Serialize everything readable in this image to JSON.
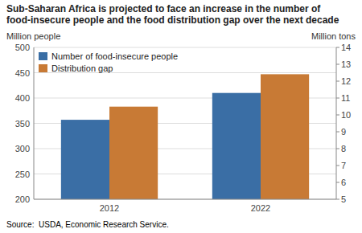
{
  "chart_data": {
    "type": "bar",
    "title": "Sub-Saharan Africa is projected to face an increase in the number of food-insecure people and the food distribution gap over the next decade",
    "ylabel": "Million people",
    "y2label": "Million tons",
    "categories": [
      "2012",
      "2022"
    ],
    "series": [
      {
        "name": "Number of food-insecure people",
        "color": "#3A6EA5",
        "values": [
          357,
          410
        ]
      },
      {
        "name": "Distribution gap",
        "color": "#C87A35",
        "values": [
          383,
          447
        ]
      }
    ],
    "ylim": [
      200,
      500
    ],
    "yticks": [
      200,
      250,
      300,
      350,
      400,
      450,
      500
    ],
    "y2lim": [
      5,
      14
    ],
    "y2ticks": [
      5,
      6,
      7,
      8,
      9,
      10,
      11,
      12,
      13,
      14
    ],
    "grid": true,
    "legend": "upper left",
    "annotations": [
      "Source:  USDA, Economic Research Service."
    ]
  }
}
